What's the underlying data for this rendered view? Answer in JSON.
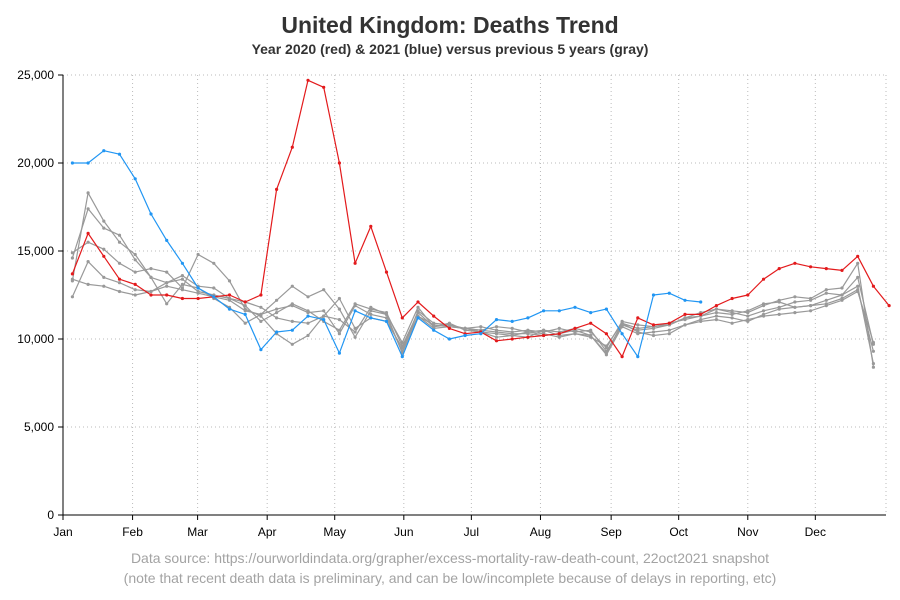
{
  "title": "United Kingdom: Deaths Trend",
  "subtitle": "Year 2020 (red) & 2021 (blue) versus previous 5 years (gray)",
  "source_line1": "Data source: https://ourworldindata.org/grapher/excess-mortality-raw-death-count, 22oct2021 snapshot",
  "source_line2": "(note that recent death data is preliminary, and can be low/incomplete because of delays in reporting, etc)",
  "chart_data": {
    "type": "line",
    "x_unit": "week",
    "xlim": [
      0.4,
      52.8
    ],
    "ylim": [
      0,
      25000
    ],
    "grid": "dotted",
    "x_ticks": [
      {
        "label": "Jan",
        "week": 0.4
      },
      {
        "label": "Feb",
        "week": 4.83
      },
      {
        "label": "Mar",
        "week": 8.97
      },
      {
        "label": "Apr",
        "week": 13.4
      },
      {
        "label": "May",
        "week": 17.7
      },
      {
        "label": "Jun",
        "week": 22.1
      },
      {
        "label": "Jul",
        "week": 26.4
      },
      {
        "label": "Aug",
        "week": 30.8
      },
      {
        "label": "Sep",
        "week": 35.3
      },
      {
        "label": "Oct",
        "week": 39.6
      },
      {
        "label": "Nov",
        "week": 44.0
      },
      {
        "label": "Dec",
        "week": 48.3
      }
    ],
    "y_ticks": [
      {
        "label": "0",
        "value": 0
      },
      {
        "label": "5,000",
        "value": 5000
      },
      {
        "label": "10,000",
        "value": 10000
      },
      {
        "label": "15,000",
        "value": 15000
      },
      {
        "label": "20,000",
        "value": 20000
      },
      {
        "label": "25,000",
        "value": 25000
      }
    ],
    "series": [
      {
        "color": "#999999",
        "start_week": 1,
        "values": [
          12400,
          14400,
          13500,
          13200,
          12800,
          12700,
          13200,
          13400,
          12700,
          12500,
          12300,
          11900,
          11000,
          11500,
          12000,
          11600,
          11000,
          10500,
          12000,
          11700,
          11500,
          9600,
          11500,
          10700,
          10900,
          10500,
          10400,
          10100,
          10200,
          10400,
          10300,
          10100,
          10300,
          10100,
          9600,
          10900,
          10600,
          10700,
          10800,
          11200,
          11300,
          11500,
          11400,
          11600,
          12000,
          12100,
          11800,
          11900,
          12200,
          12500,
          13500,
          9700
        ]
      },
      {
        "color": "#999999",
        "start_week": 1,
        "values": [
          13400,
          13100,
          13000,
          12700,
          12500,
          12700,
          13000,
          12800,
          12600,
          12400,
          12200,
          11600,
          11400,
          11700,
          11900,
          11500,
          11600,
          10300,
          11900,
          11400,
          11200,
          9300,
          11600,
          10900,
          10800,
          10600,
          10500,
          10400,
          10300,
          10300,
          10200,
          10300,
          10500,
          10200,
          9100,
          10700,
          10300,
          10400,
          10500,
          10800,
          11000,
          11100,
          10900,
          11100,
          11300,
          11400,
          11500,
          11600,
          11900,
          12200,
          12700,
          9800
        ]
      },
      {
        "color": "#999999",
        "start_week": 1,
        "values": [
          14600,
          17400,
          16300,
          15900,
          14500,
          13500,
          13200,
          13600,
          13000,
          12900,
          12300,
          12100,
          11800,
          11200,
          11000,
          10900,
          11300,
          11100,
          10400,
          11800,
          11400,
          9200,
          11300,
          10600,
          10700,
          10600,
          10700,
          10500,
          10400,
          10500,
          10400,
          10600,
          10400,
          10500,
          9300,
          10800,
          10500,
          10600,
          10800,
          11200,
          11500,
          11700,
          11500,
          11300,
          11600,
          11800,
          12100,
          12200,
          12600,
          12500,
          13000,
          8600
        ]
      },
      {
        "color": "#999999",
        "start_week": 1,
        "values": [
          14900,
          15500,
          15100,
          14300,
          13800,
          14000,
          13800,
          12900,
          14800,
          14300,
          13300,
          11700,
          11300,
          10300,
          9700,
          10200,
          11300,
          12300,
          10600,
          11200,
          11000,
          9500,
          11300,
          10800,
          10700,
          10600,
          10400,
          10300,
          10200,
          10100,
          10500,
          10200,
          10300,
          10200,
          9200,
          10900,
          10400,
          10200,
          10300,
          10800,
          11100,
          11300,
          11200,
          11000,
          11400,
          11700,
          11800,
          11900,
          12000,
          12300,
          12800,
          9300
        ]
      },
      {
        "color": "#999999",
        "start_week": 1,
        "values": [
          13300,
          18300,
          16700,
          15500,
          14800,
          13500,
          12000,
          13100,
          12900,
          12300,
          11800,
          10900,
          11400,
          12200,
          13000,
          12400,
          12800,
          11700,
          10100,
          11600,
          11400,
          9800,
          11800,
          10700,
          10800,
          10600,
          10500,
          10700,
          10600,
          10400,
          10500,
          10400,
          10600,
          10400,
          9500,
          11000,
          10800,
          10700,
          10900,
          11100,
          11300,
          11700,
          11600,
          11500,
          11900,
          12200,
          12400,
          12300,
          12800,
          12900,
          14300,
          8400
        ]
      },
      {
        "color": "#e31a1c",
        "start_week": 1,
        "values": [
          13700,
          16000,
          14700,
          13400,
          13100,
          12500,
          12500,
          12300,
          12300,
          12400,
          12500,
          12100,
          12500,
          18500,
          20900,
          24700,
          24300,
          20000,
          14300,
          16400,
          13800,
          11200,
          12100,
          11300,
          10600,
          10300,
          10400,
          9900,
          10000,
          10100,
          10200,
          10300,
          10600,
          10900,
          10300,
          9000,
          11200,
          10800,
          10900,
          11400,
          11400,
          11900,
          12300,
          12500,
          13400,
          14000,
          14300,
          14100,
          14000,
          13900,
          14700,
          13000,
          11900
        ]
      },
      {
        "color": "#2196f3",
        "start_week": 1,
        "values": [
          20000,
          20000,
          20700,
          20500,
          19100,
          17100,
          15600,
          14300,
          12900,
          12400,
          11700,
          11400,
          9400,
          10400,
          10500,
          11300,
          11100,
          9200,
          11600,
          11200,
          11000,
          9000,
          11200,
          10500,
          10000,
          10200,
          10300,
          11100,
          11000,
          11200,
          11600,
          11600,
          11800,
          11500,
          11700,
          10300,
          9000,
          12500,
          12600,
          12200,
          12100
        ]
      }
    ]
  }
}
